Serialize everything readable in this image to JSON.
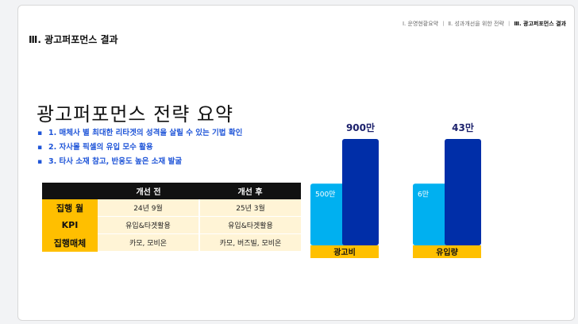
{
  "breadcrumb": {
    "items": [
      "Ⅰ. 운영현황요약",
      "Ⅱ. 성과개선을 위한 전략",
      "Ⅲ. 광고퍼포먼스 결과"
    ],
    "separator": "ㅣ"
  },
  "section_title": "Ⅲ. 광고퍼포먼스 결과",
  "main_title": "광고퍼포먼스 전략 요약",
  "bullets": [
    "1. 매체사 별 최대한 리타겟의 성격을 살릴 수 있는 기법 확인",
    "2. 자사몰 픽셀의 유입 모수 활용",
    "3. 타사 소재 참고, 반응도 높은 소재 발굴"
  ],
  "table": {
    "headers": [
      "",
      "개선 전",
      "개선 후"
    ],
    "rows": [
      {
        "label": "집행 월",
        "before": "24년 9월",
        "after": "25년 3월"
      },
      {
        "label": "KPI",
        "before": "유입&타겟활용",
        "after": "유입&타겟활용"
      },
      {
        "label": "집행매체",
        "before": "카모, 모비온",
        "after": "카모, 버즈빌, 모비온"
      }
    ]
  },
  "colors": {
    "before_bar": "#00b0f0",
    "after_bar": "#002ea8",
    "label_bg": "#ffc000",
    "bullet_text": "#1f55d8",
    "table_header_bg": "#111111"
  },
  "chart_data": [
    {
      "type": "bar",
      "category": "광고비",
      "series": [
        {
          "value": 500,
          "label": "500만",
          "unit": "만"
        },
        {
          "value": 900,
          "label": "900만",
          "unit": "만"
        }
      ]
    },
    {
      "type": "bar",
      "category": "유입량",
      "series": [
        {
          "value": 6,
          "label": "6만",
          "unit": "만"
        },
        {
          "value": 43,
          "label": "43만",
          "unit": "만"
        }
      ]
    }
  ]
}
